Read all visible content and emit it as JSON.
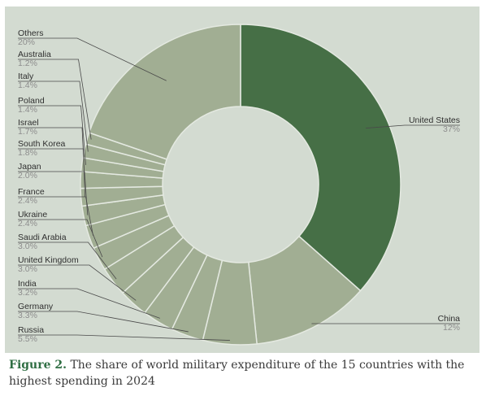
{
  "chart_data": {
    "type": "donut",
    "title": "",
    "unit": "%",
    "slices": [
      {
        "label": "United States",
        "value": 37,
        "display": "37%",
        "color": "#466f46",
        "side": "right"
      },
      {
        "label": "China",
        "value": 12,
        "display": "12%",
        "color": "#a1ae93",
        "side": "right"
      },
      {
        "label": "Russia",
        "value": 5.5,
        "display": "5.5%",
        "color": "#a1ae93",
        "side": "left"
      },
      {
        "label": "Germany",
        "value": 3.3,
        "display": "3.3%",
        "color": "#a1ae93",
        "side": "left"
      },
      {
        "label": "India",
        "value": 3.2,
        "display": "3.2%",
        "color": "#a1ae93",
        "side": "left"
      },
      {
        "label": "United Kingdom",
        "value": 3.0,
        "display": "3.0%",
        "color": "#a1ae93",
        "side": "left"
      },
      {
        "label": "Saudi Arabia",
        "value": 3.0,
        "display": "3.0%",
        "color": "#a1ae93",
        "side": "left"
      },
      {
        "label": "Ukraine",
        "value": 2.4,
        "display": "2.4%",
        "color": "#a1ae93",
        "side": "left"
      },
      {
        "label": "France",
        "value": 2.4,
        "display": "2.4%",
        "color": "#a1ae93",
        "side": "left"
      },
      {
        "label": "Japan",
        "value": 2.0,
        "display": "2.0%",
        "color": "#a1ae93",
        "side": "left"
      },
      {
        "label": "South Korea",
        "value": 1.8,
        "display": "1.8%",
        "color": "#a1ae93",
        "side": "left"
      },
      {
        "label": "Israel",
        "value": 1.7,
        "display": "1.7%",
        "color": "#a1ae93",
        "side": "left"
      },
      {
        "label": "Poland",
        "value": 1.4,
        "display": "1.4%",
        "color": "#a1ae93",
        "side": "left"
      },
      {
        "label": "Italy",
        "value": 1.4,
        "display": "1.4%",
        "color": "#a1ae93",
        "side": "left"
      },
      {
        "label": "Australia",
        "value": 1.2,
        "display": "1.2%",
        "color": "#a1ae93",
        "side": "left"
      },
      {
        "label": "Others",
        "value": 20,
        "display": "20%",
        "color": "#a1ae93",
        "side": "left"
      }
    ],
    "legend": "none"
  },
  "caption": {
    "label": "Figure 2.",
    "text": " The share of world military expenditure of the 15 countries with the highest spending in 2024"
  }
}
